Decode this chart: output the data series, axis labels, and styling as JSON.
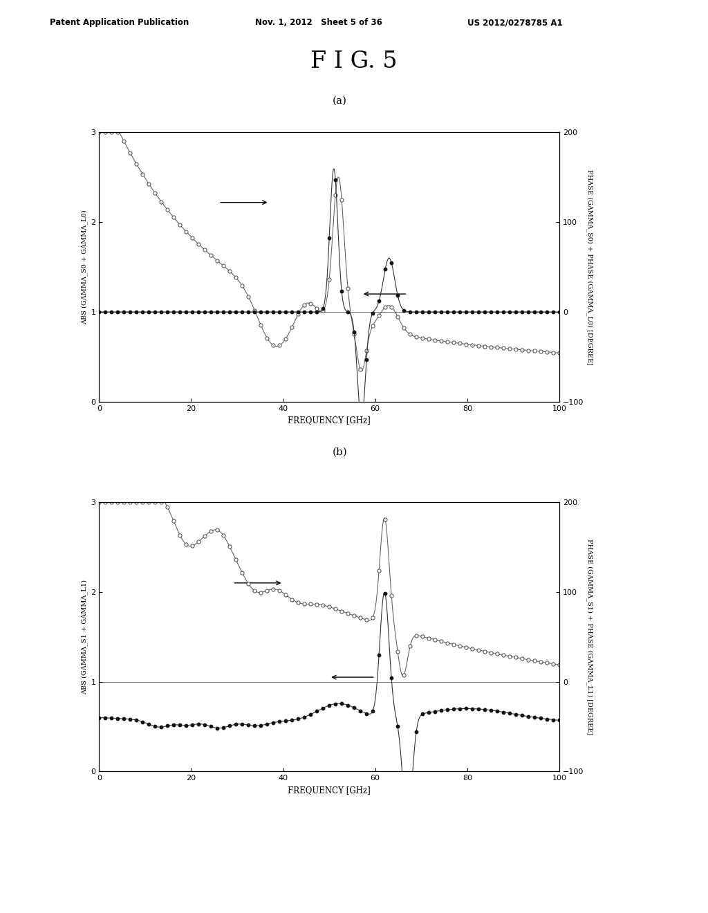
{
  "fig_title": "F I G. 5",
  "header_left": "Patent Application Publication",
  "header_mid": "Nov. 1, 2012   Sheet 5 of 36",
  "header_right": "US 2012/0278785 A1",
  "plot_a_label": "(a)",
  "plot_b_label": "(b)",
  "ylabel_left_a": "ABS (GAMMA_S0 + GAMMA_L0)",
  "ylabel_right_a": "PHASE (GAMMA_S0) + PHASE (GAMMA_L0) [DEGREE]",
  "ylabel_left_b": "ABS (GAMMA_S1 + GAMMA_L1)",
  "ylabel_right_b": "PHASE (GAMMA_S1) + PHASE (GAMMA_L1) [DEGREE]",
  "xlabel": "FREQUENCY [GHz]",
  "xlim": [
    0,
    100
  ],
  "ylim_left": [
    0,
    3
  ],
  "ylim_right": [
    -100,
    200
  ],
  "yticks_left": [
    0,
    1,
    2,
    3
  ],
  "yticks_right": [
    -100,
    0,
    100,
    200
  ],
  "xticks": [
    0,
    20,
    40,
    60,
    80,
    100
  ],
  "background_color": "#ffffff"
}
